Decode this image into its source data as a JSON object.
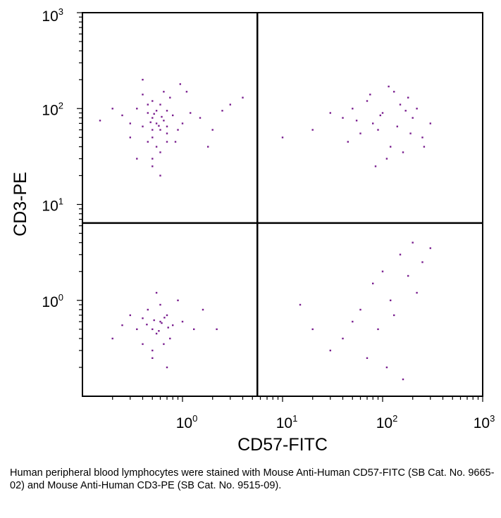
{
  "chart_data": {
    "type": "scatter",
    "title": "",
    "xlabel": "CD57-FITC",
    "ylabel": "CD3-PE",
    "x_scale": "log",
    "y_scale": "log",
    "xlim": [
      0.1,
      1000
    ],
    "ylim": [
      0.1,
      1000
    ],
    "x_ticks": [
      {
        "base": "10",
        "exp": "0",
        "value": 1
      },
      {
        "base": "10",
        "exp": "1",
        "value": 10
      },
      {
        "base": "10",
        "exp": "2",
        "value": 100
      },
      {
        "base": "10",
        "exp": "3",
        "value": 1000
      }
    ],
    "y_ticks": [
      {
        "base": "10",
        "exp": "0",
        "value": 1
      },
      {
        "base": "10",
        "exp": "1",
        "value": 10
      },
      {
        "base": "10",
        "exp": "2",
        "value": 100
      },
      {
        "base": "10",
        "exp": "3",
        "value": 1000
      }
    ],
    "quadrant_gates": {
      "x": 5.6,
      "y": 6.4
    },
    "point_color": "#7a1f8f",
    "grid": false,
    "legend": "none",
    "series": [
      {
        "values": [
          [
            0.5,
            80
          ],
          [
            0.6,
            60
          ],
          [
            0.55,
            70
          ],
          [
            0.45,
            90
          ],
          [
            0.7,
            55
          ],
          [
            0.65,
            75
          ],
          [
            0.4,
            65
          ],
          [
            0.5,
            50
          ],
          [
            0.8,
            85
          ],
          [
            0.35,
            100
          ],
          [
            0.6,
            110
          ],
          [
            0.5,
            120
          ],
          [
            0.45,
            45
          ],
          [
            0.7,
            95
          ],
          [
            0.9,
            60
          ],
          [
            0.3,
            70
          ],
          [
            0.55,
            40
          ],
          [
            0.75,
            130
          ],
          [
            0.6,
            35
          ],
          [
            1.0,
            70
          ],
          [
            0.25,
            85
          ],
          [
            0.4,
            140
          ],
          [
            0.5,
            30
          ],
          [
            0.85,
            45
          ],
          [
            1.2,
            90
          ],
          [
            0.65,
            150
          ],
          [
            0.3,
            50
          ],
          [
            0.45,
            110
          ],
          [
            0.7,
            65
          ],
          [
            0.55,
            95
          ],
          [
            1.5,
            80
          ],
          [
            2,
            60
          ],
          [
            3,
            110
          ],
          [
            0.2,
            100
          ],
          [
            0.15,
            75
          ],
          [
            4,
            130
          ],
          [
            1.8,
            40
          ],
          [
            0.5,
            25
          ],
          [
            0.6,
            20
          ],
          [
            0.95,
            180
          ],
          [
            0.4,
            200
          ],
          [
            1.1,
            150
          ],
          [
            2.5,
            95
          ],
          [
            0.35,
            30
          ],
          [
            0.7,
            45
          ],
          [
            0.5,
            60
          ],
          [
            0.62,
            82
          ],
          [
            0.48,
            72
          ],
          [
            0.58,
            66
          ],
          [
            0.52,
            88
          ]
        ]
      },
      {
        "values": [
          [
            100,
            90
          ],
          [
            80,
            70
          ],
          [
            150,
            110
          ],
          [
            60,
            55
          ],
          [
            200,
            80
          ],
          [
            120,
            40
          ],
          [
            50,
            100
          ],
          [
            180,
            130
          ],
          [
            90,
            60
          ],
          [
            250,
            50
          ],
          [
            70,
            120
          ],
          [
            40,
            80
          ],
          [
            130,
            150
          ],
          [
            300,
            70
          ],
          [
            110,
            30
          ],
          [
            20,
            60
          ],
          [
            10,
            50
          ],
          [
            160,
            35
          ],
          [
            220,
            100
          ],
          [
            95,
            85
          ],
          [
            45,
            45
          ],
          [
            140,
            65
          ],
          [
            75,
            140
          ],
          [
            30,
            90
          ],
          [
            260,
            40
          ],
          [
            190,
            55
          ],
          [
            85,
            25
          ],
          [
            115,
            170
          ],
          [
            55,
            75
          ],
          [
            170,
            95
          ]
        ]
      },
      {
        "values": [
          [
            0.6,
            0.6
          ],
          [
            0.5,
            0.5
          ],
          [
            0.7,
            0.7
          ],
          [
            0.55,
            0.45
          ],
          [
            0.4,
            0.65
          ],
          [
            0.65,
            0.35
          ],
          [
            0.8,
            0.55
          ],
          [
            0.45,
            0.8
          ],
          [
            0.35,
            0.5
          ],
          [
            1.0,
            0.6
          ],
          [
            0.5,
            0.3
          ],
          [
            0.6,
            0.9
          ],
          [
            0.3,
            0.7
          ],
          [
            0.75,
            0.4
          ],
          [
            0.9,
            1.0
          ],
          [
            0.25,
            0.55
          ],
          [
            0.5,
            0.25
          ],
          [
            1.3,
            0.5
          ],
          [
            0.2,
            0.4
          ],
          [
            0.55,
            1.2
          ],
          [
            0.7,
            0.2
          ],
          [
            1.6,
            0.8
          ],
          [
            2.2,
            0.5
          ],
          [
            0.4,
            0.35
          ],
          [
            0.62,
            0.58
          ],
          [
            0.52,
            0.62
          ],
          [
            0.58,
            0.48
          ],
          [
            0.66,
            0.66
          ],
          [
            0.44,
            0.56
          ],
          [
            0.72,
            0.52
          ]
        ]
      },
      {
        "values": [
          [
            150,
            3
          ],
          [
            100,
            2
          ],
          [
            200,
            4
          ],
          [
            80,
            1.5
          ],
          [
            250,
            2.5
          ],
          [
            120,
            1
          ],
          [
            60,
            0.8
          ],
          [
            300,
            3.5
          ],
          [
            180,
            1.8
          ],
          [
            50,
            0.6
          ],
          [
            90,
            0.5
          ],
          [
            40,
            0.4
          ],
          [
            220,
            1.2
          ],
          [
            30,
            0.3
          ],
          [
            130,
            0.7
          ],
          [
            20,
            0.5
          ],
          [
            15,
            0.9
          ],
          [
            70,
            0.25
          ],
          [
            110,
            0.2
          ],
          [
            160,
            0.15
          ]
        ]
      }
    ]
  },
  "caption": "Human peripheral blood lymphocytes were stained with Mouse Anti-Human CD57-FITC (SB Cat. No. 9665-02) and Mouse Anti-Human CD3-PE (SB Cat. No. 9515-09)."
}
